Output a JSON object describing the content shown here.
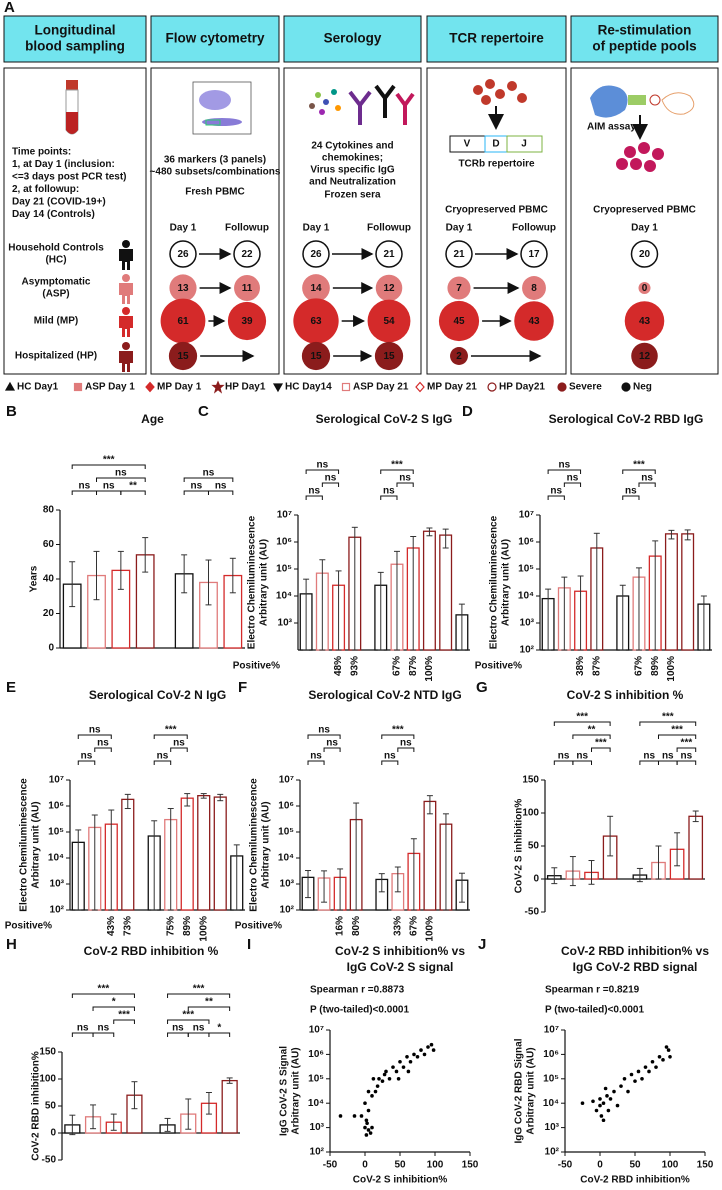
{
  "panel_a": {
    "label": "A",
    "columns": [
      {
        "header": [
          "Longitudinal",
          "blood sampling"
        ],
        "text": [
          "Time points:",
          "1, at Day 1 (inclusion:",
          "<=3 days post PCR test)",
          "2, at followup:",
          "Day 21 (COVID-19+)",
          "Day 14 (Controls)"
        ],
        "groups": [
          [
            "Household Controls",
            "(HC)"
          ],
          [
            "Asymptomatic",
            "(ASP)"
          ],
          [
            "Mild (MP)"
          ],
          [
            "Hospitalized (HP)"
          ]
        ]
      },
      {
        "header": [
          "Flow cytometry"
        ],
        "text": [
          "36 markers (3 panels)",
          "~480 subsets/combinations"
        ],
        "sample": "Fresh PBMC",
        "timepoints": [
          "Day 1",
          "Followup"
        ],
        "counts": [
          [
            26,
            22
          ],
          [
            13,
            11
          ],
          [
            61,
            39
          ],
          [
            15,
            null
          ]
        ]
      },
      {
        "header": [
          "Serology"
        ],
        "text": [
          "24 Cytokines and",
          "chemokines;",
          "Virus specific IgG",
          "and Neutralization"
        ],
        "sample": "Frozen sera",
        "timepoints": [
          "Day 1",
          "Followup"
        ],
        "counts": [
          [
            26,
            21
          ],
          [
            14,
            12
          ],
          [
            63,
            54
          ],
          [
            15,
            15
          ]
        ]
      },
      {
        "header": [
          "TCR repertoire"
        ],
        "text": [
          "TCRb repertoire"
        ],
        "segments": [
          "V",
          "D",
          "J"
        ],
        "sample": "Cryopreserved PBMC",
        "timepoints": [
          "Day 1",
          "Followup"
        ],
        "counts": [
          [
            21,
            17
          ],
          [
            7,
            8
          ],
          [
            45,
            43
          ],
          [
            2,
            null
          ]
        ]
      },
      {
        "header": [
          "Re-stimulation",
          "of peptide pools"
        ],
        "text": [
          "AIM assays"
        ],
        "sample": "Cryopreserved PBMC",
        "timepoints": [
          "Day 1"
        ],
        "counts": [
          [
            20
          ],
          [
            0
          ],
          [
            43
          ],
          [
            12
          ]
        ]
      }
    ]
  },
  "legend": [
    {
      "label": "HC Day1",
      "color": "#111111"
    },
    {
      "label": "ASP Day 1",
      "color": "#e07b7b"
    },
    {
      "label": "MP Day 1",
      "color": "#d42a2a"
    },
    {
      "label": "HP Day1",
      "color": "#8b1c1c"
    },
    {
      "label": "HC Day14",
      "color": "#111111"
    },
    {
      "label": "ASP Day 21",
      "color": "#e07b7b"
    },
    {
      "label": "MP Day 21",
      "color": "#d42a2a"
    },
    {
      "label": "HP Day21",
      "color": "#8b1c1c"
    },
    {
      "label": "Severe",
      "color": "#8b1c1c"
    },
    {
      "label": "Neg",
      "color": "#111111"
    }
  ],
  "chart_data": [
    {
      "type": "bar",
      "panel": "B",
      "title": "Age",
      "ylabel": [
        "Years"
      ],
      "log": false,
      "ylim": [
        0,
        80
      ],
      "yticks": [
        0,
        20,
        40,
        60,
        80
      ],
      "values": [
        37,
        42,
        45,
        54,
        43,
        38,
        42
      ],
      "errors": [
        13,
        14,
        11,
        10,
        11,
        13,
        10
      ],
      "colors": [
        "#111111",
        "#e07b7b",
        "#d42a2a",
        "#8b1c1c",
        "#111111",
        "#e07b7b",
        "#d42a2a"
      ],
      "annotations": [
        "***",
        "ns",
        "ns",
        "ns",
        "**",
        "ns",
        "ns",
        "ns"
      ]
    },
    {
      "type": "bar",
      "panel": "C",
      "title": "Serological CoV-2 S IgG",
      "ylabel": [
        "Electro Chemiluminescence",
        "Arbitrary unit (AU)"
      ],
      "log": true,
      "ylim": [
        100,
        10000000
      ],
      "yticks": [
        {
          "value": 1000,
          "label": "10³"
        },
        {
          "value": 10000,
          "label": "10⁴"
        },
        {
          "value": 100000,
          "label": "10⁵"
        },
        {
          "value": 1000000,
          "label": "10⁶"
        },
        {
          "value": 10000000,
          "label": "10⁷"
        }
      ],
      "values": [
        12000,
        70000,
        25000,
        1500000,
        25000,
        150000,
        600000,
        2500000,
        1800000,
        2000
      ],
      "errors": [
        30000,
        150000,
        60000,
        2000000,
        50000,
        300000,
        1000000,
        800000,
        1200000,
        3000
      ],
      "colors": [
        "#111111",
        "#e07b7b",
        "#d42a2a",
        "#8b1c1c",
        "#111111",
        "#e07b7b",
        "#d42a2a",
        "#8b1c1c",
        "#8b1c1c",
        "#111111"
      ],
      "annotations": [
        "ns",
        "ns",
        "ns",
        "***",
        "ns",
        "ns"
      ],
      "positive": {
        "label": "Positive%",
        "values": [
          null,
          null,
          48,
          93,
          null,
          67,
          87,
          100,
          null,
          null
        ],
        "value_labels": [
          null,
          null,
          "48%",
          "93%",
          null,
          "67%",
          "87%",
          "100%",
          null,
          null
        ]
      }
    },
    {
      "type": "bar",
      "panel": "D",
      "title": "Serological CoV-2 RBD IgG",
      "ylabel": [
        "Electro Chemiluminescence",
        "Arbitrary unit (AU)"
      ],
      "log": true,
      "ylim": [
        100,
        10000000
      ],
      "yticks": [
        {
          "value": 100,
          "label": "10²"
        },
        {
          "value": 1000,
          "label": "10³"
        },
        {
          "value": 10000,
          "label": "10⁴"
        },
        {
          "value": 100000,
          "label": "10⁵"
        },
        {
          "value": 1000000,
          "label": "10⁶"
        },
        {
          "value": 10000000,
          "label": "10⁷"
        }
      ],
      "values": [
        8000,
        20000,
        15000,
        600000,
        10000,
        50000,
        300000,
        2000000,
        2000000,
        5000
      ],
      "errors": [
        10000,
        30000,
        40000,
        1500000,
        15000,
        60000,
        800000,
        700000,
        800000,
        5000
      ],
      "colors": [
        "#111111",
        "#e07b7b",
        "#d42a2a",
        "#8b1c1c",
        "#111111",
        "#e07b7b",
        "#d42a2a",
        "#8b1c1c",
        "#8b1c1c",
        "#111111"
      ],
      "annotations": [
        "ns",
        "ns",
        "ns",
        "***",
        "ns",
        "ns"
      ],
      "positive": {
        "label": "Positive%",
        "values": [
          null,
          null,
          38,
          87,
          null,
          67,
          89,
          100,
          null,
          null
        ],
        "value_labels": [
          null,
          null,
          "38%",
          "87%",
          null,
          "67%",
          "89%",
          "100%",
          null,
          null
        ]
      }
    },
    {
      "type": "bar",
      "panel": "E",
      "title": "Serological CoV-2 N IgG",
      "ylabel": [
        "Electro Chemiluminescence",
        "Arbitrary unit (AU)"
      ],
      "log": true,
      "ylim": [
        100,
        10000000
      ],
      "yticks": [
        {
          "value": 100,
          "label": "10²"
        },
        {
          "value": 1000,
          "label": "10³"
        },
        {
          "value": 10000,
          "label": "10⁴"
        },
        {
          "value": 100000,
          "label": "10⁵"
        },
        {
          "value": 1000000,
          "label": "10⁶"
        },
        {
          "value": 10000000,
          "label": "10⁷"
        }
      ],
      "values": [
        40000,
        150000,
        200000,
        1800000,
        70000,
        300000,
        2000000,
        2500000,
        2200000,
        12000
      ],
      "errors": [
        80000,
        300000,
        500000,
        1000000,
        200000,
        500000,
        1000000,
        500000,
        600000,
        20000
      ],
      "colors": [
        "#111111",
        "#e07b7b",
        "#d42a2a",
        "#8b1c1c",
        "#111111",
        "#e07b7b",
        "#d42a2a",
        "#8b1c1c",
        "#8b1c1c",
        "#111111"
      ],
      "annotations": [
        "ns",
        "ns",
        "ns",
        "***",
        "ns",
        "ns"
      ],
      "positive": {
        "label": "Positive%",
        "values": [
          null,
          null,
          43,
          73,
          null,
          75,
          89,
          100,
          null,
          null
        ],
        "value_labels": [
          null,
          null,
          "43%",
          "73%",
          null,
          "75%",
          "89%",
          "100%",
          null,
          null
        ]
      }
    },
    {
      "type": "bar",
      "panel": "F",
      "title": "Serological CoV-2 NTD IgG",
      "ylabel": [
        "Electro Chemiluminescence",
        "Arbitrary unit (AU)"
      ],
      "log": true,
      "ylim": [
        100,
        10000000
      ],
      "yticks": [
        {
          "value": 100,
          "label": "10²"
        },
        {
          "value": 1000,
          "label": "10³"
        },
        {
          "value": 10000,
          "label": "10⁴"
        },
        {
          "value": 100000,
          "label": "10⁵"
        },
        {
          "value": 1000000,
          "label": "10⁶"
        },
        {
          "value": 10000000,
          "label": "10⁷"
        }
      ],
      "values": [
        1800,
        1700,
        1800,
        300000,
        1500,
        2500,
        15000,
        1500000,
        200000,
        1400
      ],
      "errors": [
        1500,
        1500,
        2000,
        1000000,
        1000,
        2000,
        40000,
        1000000,
        300000,
        1200
      ],
      "colors": [
        "#111111",
        "#e07b7b",
        "#d42a2a",
        "#8b1c1c",
        "#111111",
        "#e07b7b",
        "#d42a2a",
        "#8b1c1c",
        "#8b1c1c",
        "#111111"
      ],
      "annotations": [
        "ns",
        "ns",
        "ns",
        "***",
        "ns",
        "ns"
      ],
      "positive": {
        "label": "Positive%",
        "values": [
          null,
          null,
          16,
          80,
          null,
          33,
          67,
          100,
          null,
          null
        ],
        "value_labels": [
          null,
          null,
          "16%",
          "80%",
          null,
          "33%",
          "67%",
          "100%",
          null,
          null
        ]
      }
    },
    {
      "type": "bar",
      "panel": "G",
      "title": "CoV-2 S inhibition %",
      "ylabel": [
        "CoV-2 S inhibition%"
      ],
      "log": false,
      "ylim": [
        -50,
        150
      ],
      "yticks": [
        -50,
        0,
        50,
        100,
        150
      ],
      "values": [
        5,
        12,
        10,
        65,
        6,
        25,
        45,
        95
      ],
      "errors": [
        12,
        22,
        18,
        30,
        10,
        25,
        25,
        8
      ],
      "colors": [
        "#111111",
        "#e07b7b",
        "#d42a2a",
        "#8b1c1c",
        "#111111",
        "#e07b7b",
        "#d42a2a",
        "#8b1c1c"
      ],
      "annotations": [
        "***",
        "**",
        "***",
        "ns",
        "ns",
        "***",
        "***",
        "***",
        "ns",
        "ns",
        "ns"
      ]
    },
    {
      "type": "bar",
      "panel": "H",
      "title": "CoV-2 RBD inhibition %",
      "ylabel": [
        "CoV-2 RBD inhibition%"
      ],
      "log": false,
      "ylim": [
        -50,
        150
      ],
      "yticks": [
        -50,
        0,
        50,
        100,
        150
      ],
      "values": [
        15,
        30,
        20,
        70,
        15,
        35,
        55,
        97
      ],
      "errors": [
        18,
        22,
        15,
        25,
        12,
        28,
        20,
        5
      ],
      "colors": [
        "#111111",
        "#e07b7b",
        "#d42a2a",
        "#8b1c1c",
        "#111111",
        "#e07b7b",
        "#d42a2a",
        "#8b1c1c"
      ],
      "annotations": [
        "***",
        "*",
        "***",
        "ns",
        "ns",
        "***",
        "**",
        "***",
        "*",
        "ns",
        "ns"
      ]
    },
    {
      "type": "scatter",
      "panel": "I",
      "title": [
        "CoV-2 S inhibition%  vs",
        "IgG CoV-2 S signal"
      ],
      "stats": [
        "Spearman r =0.8873",
        "P (two-tailed)<0.0001"
      ],
      "xlabel": "CoV-2 S inhibition%",
      "ylabel": [
        "IgG CoV-2 S Signal",
        "Arbitrary unit (AU)"
      ],
      "log": true,
      "color": "#000000",
      "xlim": [
        -50,
        150
      ],
      "xticks": [
        -50,
        0,
        50,
        100,
        150
      ],
      "ylim": [
        100,
        10000000
      ],
      "yticks": [
        {
          "value": 100,
          "label": "10²"
        },
        {
          "value": 1000,
          "label": "10³"
        },
        {
          "value": 10000,
          "label": "10⁴"
        },
        {
          "value": 100000,
          "label": "10⁵"
        },
        {
          "value": 1000000,
          "label": "10⁶"
        },
        {
          "value": 10000000,
          "label": "10⁷"
        }
      ],
      "x": [
        0,
        2,
        5,
        3,
        8,
        10,
        -5,
        -15,
        -35,
        5,
        12,
        15,
        20,
        25,
        30,
        35,
        40,
        45,
        50,
        55,
        60,
        65,
        70,
        75,
        80,
        85,
        90,
        95,
        98,
        0,
        5,
        2,
        10,
        18,
        28,
        48,
        62
      ],
      "values": [
        1000,
        500,
        800,
        1500,
        600,
        1000,
        3000,
        3000,
        3000,
        30000,
        100000,
        30000,
        100000,
        80000,
        200000,
        100000,
        300000,
        200000,
        500000,
        300000,
        800000,
        500000,
        1000000,
        800000,
        1500000,
        1000000,
        2000000,
        2500000,
        1500000,
        10000,
        5000,
        2000,
        20000,
        50000,
        150000,
        100000,
        200000
      ]
    },
    {
      "type": "scatter",
      "panel": "J",
      "title": [
        "CoV-2 RBD inhibition%  vs",
        "IgG CoV-2 RBD signal"
      ],
      "stats": [
        "Spearman r =0.8219",
        "P (two-tailed)<0.0001"
      ],
      "xlabel": "CoV-2 RBD inhibition%",
      "ylabel": [
        "IgG CoV-2 RBD Signal",
        "Arbitrary unit (AU)"
      ],
      "log": true,
      "color": "#000000",
      "xlim": [
        -50,
        150
      ],
      "xticks": [
        -50,
        0,
        50,
        100,
        150
      ],
      "ylim": [
        100,
        10000000
      ],
      "yticks": [
        {
          "value": 100,
          "label": "10²"
        },
        {
          "value": 1000,
          "label": "10³"
        },
        {
          "value": 10000,
          "label": "10⁴"
        },
        {
          "value": 100000,
          "label": "10⁵"
        },
        {
          "value": 1000000,
          "label": "10⁶"
        },
        {
          "value": 10000000,
          "label": "10⁷"
        }
      ],
      "x": [
        0,
        5,
        10,
        15,
        -5,
        -10,
        -25,
        20,
        25,
        30,
        35,
        40,
        45,
        50,
        55,
        60,
        65,
        70,
        75,
        80,
        85,
        90,
        95,
        98,
        100,
        5,
        8,
        12,
        0,
        2
      ],
      "values": [
        8000,
        10000,
        20000,
        15000,
        5000,
        12000,
        10000,
        30000,
        8000,
        50000,
        100000,
        30000,
        150000,
        80000,
        200000,
        100000,
        300000,
        200000,
        500000,
        300000,
        800000,
        600000,
        2000000,
        1500000,
        800000,
        2000,
        40000,
        5000,
        15000,
        3000
      ]
    }
  ]
}
